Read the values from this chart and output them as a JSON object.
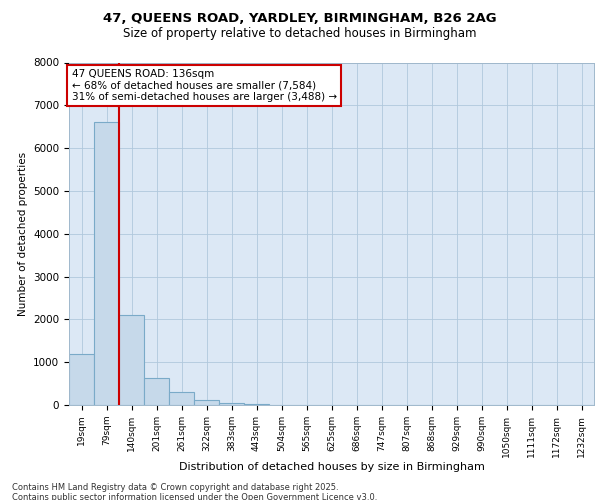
{
  "title1": "47, QUEENS ROAD, YARDLEY, BIRMINGHAM, B26 2AG",
  "title2": "Size of property relative to detached houses in Birmingham",
  "xlabel": "Distribution of detached houses by size in Birmingham",
  "ylabel": "Number of detached properties",
  "bin_labels": [
    "19sqm",
    "79sqm",
    "140sqm",
    "201sqm",
    "261sqm",
    "322sqm",
    "383sqm",
    "443sqm",
    "504sqm",
    "565sqm",
    "625sqm",
    "686sqm",
    "747sqm",
    "807sqm",
    "868sqm",
    "929sqm",
    "990sqm",
    "1050sqm",
    "1111sqm",
    "1172sqm",
    "1232sqm"
  ],
  "bar_values": [
    1200,
    6600,
    2100,
    620,
    300,
    110,
    55,
    20,
    10,
    5,
    3,
    2,
    1,
    1,
    1,
    0,
    0,
    0,
    0,
    0,
    0
  ],
  "bar_color": "#c6d9ea",
  "bar_edgecolor": "#7aaac8",
  "red_line_color": "#cc0000",
  "annotation_text": "47 QUEENS ROAD: 136sqm\n← 68% of detached houses are smaller (7,584)\n31% of semi-detached houses are larger (3,488) →",
  "annotation_box_color": "#ffffff",
  "annotation_border_color": "#cc0000",
  "ylim": [
    0,
    8000
  ],
  "yticks": [
    0,
    1000,
    2000,
    3000,
    4000,
    5000,
    6000,
    7000,
    8000
  ],
  "footer": "Contains HM Land Registry data © Crown copyright and database right 2025.\nContains public sector information licensed under the Open Government Licence v3.0.",
  "bg_color": "#ffffff",
  "plot_bg_color": "#dce8f5"
}
